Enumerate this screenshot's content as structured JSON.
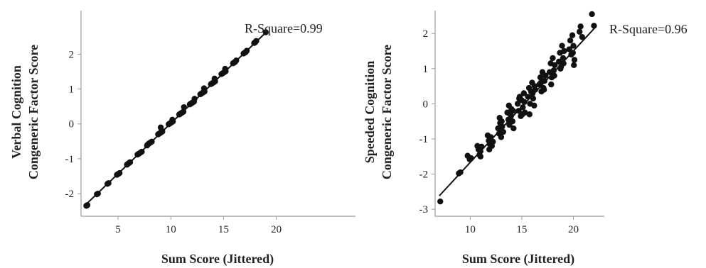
{
  "chart_data": [
    {
      "type": "scatter",
      "xlabel": "Sum Score (Jittered)",
      "ylabel": [
        "Verbal Cognition",
        "Congeneric Factor Score"
      ],
      "annotation": "R-Square=0.99",
      "x_ticks": [
        5,
        10,
        15,
        20
      ],
      "y_ticks": [
        -2,
        -1,
        0,
        1,
        2
      ],
      "xlim": [
        1.5,
        27.5
      ],
      "ylim": [
        -2.65,
        3.25
      ],
      "fit_line": {
        "x": [
          2,
          19
        ],
        "y": [
          -2.3,
          2.62
        ]
      },
      "points": [
        [
          2.0,
          -2.35
        ],
        [
          2.1,
          -2.33
        ],
        [
          3.0,
          -2.02
        ],
        [
          3.1,
          -2.0
        ],
        [
          4.0,
          -1.72
        ],
        [
          4.1,
          -1.7
        ],
        [
          4.95,
          -1.45
        ],
        [
          5.05,
          -1.43
        ],
        [
          5.15,
          -1.41
        ],
        [
          4.9,
          -1.46
        ],
        [
          5.9,
          -1.16
        ],
        [
          6.0,
          -1.13
        ],
        [
          6.1,
          -1.11
        ],
        [
          5.85,
          -1.17
        ],
        [
          6.15,
          -1.1
        ],
        [
          6.85,
          -0.88
        ],
        [
          6.95,
          -0.86
        ],
        [
          7.05,
          -0.84
        ],
        [
          7.15,
          -0.82
        ],
        [
          7.25,
          -0.8
        ],
        [
          7.8,
          -0.6
        ],
        [
          7.9,
          -0.57
        ],
        [
          8.0,
          -0.55
        ],
        [
          8.1,
          -0.53
        ],
        [
          8.2,
          -0.51
        ],
        [
          7.75,
          -0.62
        ],
        [
          8.8,
          -0.3
        ],
        [
          8.9,
          -0.28
        ],
        [
          9.0,
          -0.26
        ],
        [
          9.1,
          -0.24
        ],
        [
          9.2,
          -0.22
        ],
        [
          8.85,
          -0.29
        ],
        [
          9.15,
          -0.2
        ],
        [
          9.05,
          -0.1
        ],
        [
          9.8,
          -0.01
        ],
        [
          9.9,
          0.01
        ],
        [
          10.0,
          0.03
        ],
        [
          10.1,
          0.05
        ],
        [
          10.2,
          0.07
        ],
        [
          10.15,
          0.12
        ],
        [
          10.8,
          0.27
        ],
        [
          10.9,
          0.29
        ],
        [
          11.0,
          0.31
        ],
        [
          11.1,
          0.33
        ],
        [
          11.2,
          0.35
        ],
        [
          11.25,
          0.48
        ],
        [
          10.85,
          0.28
        ],
        [
          11.8,
          0.56
        ],
        [
          11.9,
          0.58
        ],
        [
          12.0,
          0.6
        ],
        [
          12.1,
          0.62
        ],
        [
          12.2,
          0.64
        ],
        [
          12.25,
          0.72
        ],
        [
          12.8,
          0.85
        ],
        [
          12.9,
          0.87
        ],
        [
          13.0,
          0.89
        ],
        [
          13.1,
          0.91
        ],
        [
          13.2,
          0.93
        ],
        [
          13.15,
          1.02
        ],
        [
          13.8,
          1.14
        ],
        [
          13.9,
          1.16
        ],
        [
          14.0,
          1.18
        ],
        [
          14.1,
          1.2
        ],
        [
          14.2,
          1.22
        ],
        [
          14.15,
          1.3
        ],
        [
          14.8,
          1.43
        ],
        [
          14.9,
          1.45
        ],
        [
          15.0,
          1.47
        ],
        [
          15.1,
          1.49
        ],
        [
          15.2,
          1.51
        ],
        [
          15.15,
          1.58
        ],
        [
          15.9,
          1.74
        ],
        [
          16.0,
          1.76
        ],
        [
          16.1,
          1.78
        ],
        [
          16.2,
          1.82
        ],
        [
          16.9,
          2.02
        ],
        [
          17.0,
          2.04
        ],
        [
          17.1,
          2.06
        ],
        [
          17.2,
          2.1
        ],
        [
          17.9,
          2.32
        ],
        [
          18.0,
          2.34
        ],
        [
          18.1,
          2.38
        ],
        [
          19.0,
          2.63
        ]
      ]
    },
    {
      "type": "scatter",
      "xlabel": "Sum Score (Jittered)",
      "ylabel": [
        "Speeded Cognition",
        "Congeneric Factor Score"
      ],
      "annotation": "R-Square=0.96",
      "x_ticks": [
        10,
        15,
        20
      ],
      "y_ticks": [
        -3,
        -2,
        -1,
        0,
        1,
        2
      ],
      "xlim": [
        6.6,
        23
      ],
      "ylim": [
        -3.2,
        2.65
      ],
      "fit_line": {
        "x": [
          7,
          22.2
        ],
        "y": [
          -2.62,
          2.2
        ]
      },
      "points": [
        [
          7.1,
          -2.78
        ],
        [
          8.9,
          -1.98
        ],
        [
          9.05,
          -1.95
        ],
        [
          9.75,
          -1.48
        ],
        [
          9.95,
          -1.58
        ],
        [
          10.1,
          -1.55
        ],
        [
          10.7,
          -1.2
        ],
        [
          10.8,
          -1.3
        ],
        [
          10.9,
          -1.45
        ],
        [
          11.0,
          -1.35
        ],
        [
          11.1,
          -1.22
        ],
        [
          11.0,
          -1.5
        ],
        [
          11.7,
          -0.9
        ],
        [
          11.8,
          -1.05
        ],
        [
          11.9,
          -1.15
        ],
        [
          12.0,
          -0.95
        ],
        [
          12.1,
          -1.2
        ],
        [
          12.2,
          -1.08
        ],
        [
          11.85,
          -1.3
        ],
        [
          12.7,
          -0.7
        ],
        [
          12.8,
          -0.85
        ],
        [
          12.9,
          -0.55
        ],
        [
          13.0,
          -0.95
        ],
        [
          13.1,
          -0.65
        ],
        [
          13.2,
          -0.8
        ],
        [
          12.85,
          -0.4
        ],
        [
          13.05,
          -0.5
        ],
        [
          13.6,
          -0.25
        ],
        [
          13.7,
          -0.45
        ],
        [
          13.8,
          -0.6
        ],
        [
          13.9,
          -0.3
        ],
        [
          14.0,
          -0.15
        ],
        [
          14.1,
          -0.5
        ],
        [
          14.2,
          -0.7
        ],
        [
          13.75,
          -0.05
        ],
        [
          13.95,
          -0.35
        ],
        [
          14.15,
          -0.2
        ],
        [
          14.6,
          0.0
        ],
        [
          14.7,
          -0.2
        ],
        [
          14.8,
          0.2
        ],
        [
          14.9,
          -0.35
        ],
        [
          15.0,
          0.1
        ],
        [
          15.1,
          -0.1
        ],
        [
          15.2,
          0.3
        ],
        [
          15.3,
          -0.25
        ],
        [
          14.75,
          0.15
        ],
        [
          15.05,
          -0.3
        ],
        [
          15.25,
          0.05
        ],
        [
          15.6,
          0.2
        ],
        [
          15.7,
          0.45
        ],
        [
          15.8,
          0.0
        ],
        [
          15.9,
          0.35
        ],
        [
          16.0,
          0.6
        ],
        [
          16.1,
          0.15
        ],
        [
          16.2,
          -0.05
        ],
        [
          16.3,
          0.4
        ],
        [
          15.75,
          -0.3
        ],
        [
          16.05,
          0.3
        ],
        [
          16.25,
          0.5
        ],
        [
          16.7,
          0.55
        ],
        [
          16.8,
          0.75
        ],
        [
          16.9,
          0.35
        ],
        [
          17.0,
          0.9
        ],
        [
          17.1,
          0.45
        ],
        [
          17.2,
          0.65
        ],
        [
          17.3,
          0.8
        ],
        [
          16.85,
          0.6
        ],
        [
          17.15,
          0.4
        ],
        [
          17.7,
          0.9
        ],
        [
          17.8,
          1.15
        ],
        [
          17.9,
          0.75
        ],
        [
          18.0,
          1.3
        ],
        [
          18.1,
          0.95
        ],
        [
          18.2,
          1.1
        ],
        [
          17.85,
          0.55
        ],
        [
          18.15,
          0.8
        ],
        [
          18.6,
          1.2
        ],
        [
          18.7,
          1.45
        ],
        [
          18.8,
          1.05
        ],
        [
          18.9,
          1.65
        ],
        [
          19.0,
          1.3
        ],
        [
          19.1,
          1.5
        ],
        [
          18.75,
          1.0
        ],
        [
          19.05,
          1.15
        ],
        [
          19.6,
          1.55
        ],
        [
          19.7,
          1.8
        ],
        [
          19.8,
          1.4
        ],
        [
          19.9,
          1.95
        ],
        [
          20.0,
          1.65
        ],
        [
          20.1,
          1.25
        ],
        [
          20.05,
          1.1
        ],
        [
          19.95,
          1.45
        ],
        [
          20.6,
          2.05
        ],
        [
          20.7,
          2.2
        ],
        [
          20.85,
          1.9
        ],
        [
          21.8,
          2.55
        ],
        [
          22.0,
          2.22
        ]
      ]
    }
  ]
}
